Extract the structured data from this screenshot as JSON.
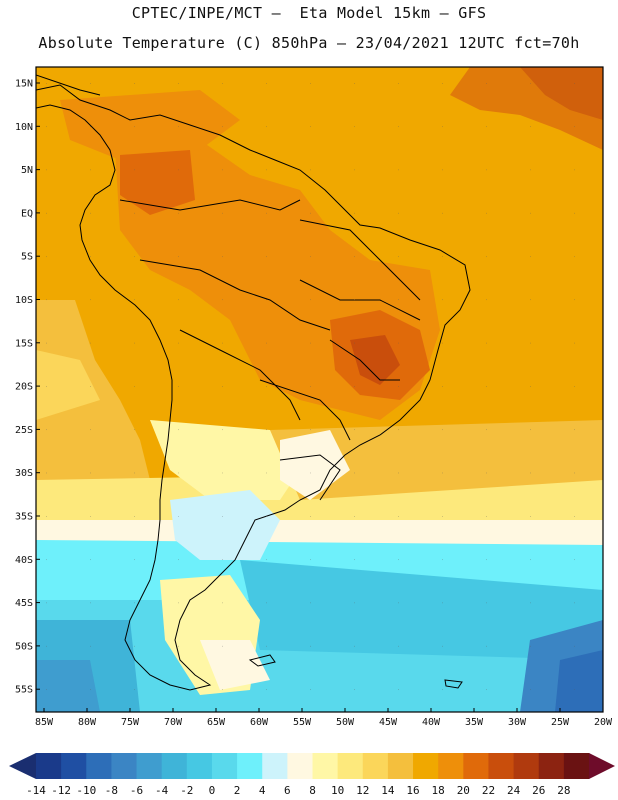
{
  "header": {
    "line1": "CPTEC/INPE/MCT –  Eta Model 15km – GFS",
    "line2": "Absolute Temperature (C) 850hPa – 23/04/2021 12UTC fct=70h"
  },
  "map": {
    "lat_labels": [
      "15N",
      "10N",
      "5N",
      "EQ",
      "5S",
      "10S",
      "15S",
      "20S",
      "25S",
      "30S",
      "35S",
      "40S",
      "45S",
      "50S",
      "55S"
    ],
    "lon_labels": [
      "85W",
      "80W",
      "75W",
      "70W",
      "65W",
      "60W",
      "55W",
      "50W",
      "45W",
      "40W",
      "35W",
      "30W",
      "25W",
      "20W"
    ],
    "lat_range": [
      15,
      -55
    ],
    "lon_range": [
      -85,
      -20
    ],
    "ocean_color": "#f0a800"
  },
  "colorbar": {
    "labels": [
      "-14",
      "-12",
      "-10",
      "-8",
      "-6",
      "-4",
      "-2",
      "0",
      "2",
      "4",
      "6",
      "8",
      "10",
      "12",
      "14",
      "16",
      "18",
      "20",
      "22",
      "24",
      "26",
      "28"
    ],
    "colors": [
      "#1a3a8a",
      "#1f4fa3",
      "#2d6eb8",
      "#3b85c4",
      "#3f9dcf",
      "#3fb4d8",
      "#46c8e3",
      "#59d9ec",
      "#6ef0fb",
      "#cdf3fb",
      "#fff8e1",
      "#fff7a6",
      "#fde97c",
      "#fbd65a",
      "#f4bf3d",
      "#f0a800",
      "#ee8f0a",
      "#e06a0a",
      "#c94e0c",
      "#b03a0e",
      "#8c2311",
      "#6a1212"
    ],
    "left_tip_color": "#1a2e70",
    "right_tip_color": "#6e0c2a"
  }
}
